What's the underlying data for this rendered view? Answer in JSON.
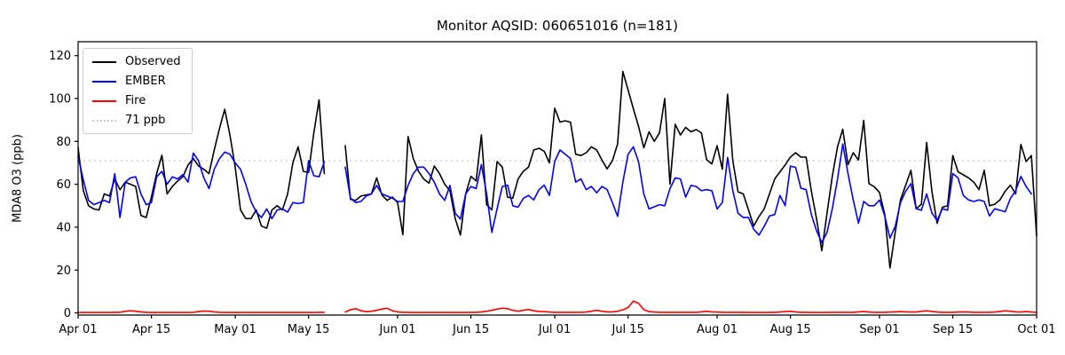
{
  "chart_data": {
    "type": "line",
    "title": "Monitor AQSID: 060651016 (n=181)",
    "xlabel": "",
    "ylabel": "MDA8 O3 (ppb)",
    "ylim": [
      -1,
      126.5
    ],
    "y_ticks": [
      0,
      20,
      40,
      60,
      80,
      100,
      120
    ],
    "x_ticks": [
      {
        "label": "Apr 01",
        "day": 0
      },
      {
        "label": "Apr 15",
        "day": 14
      },
      {
        "label": "May 01",
        "day": 30
      },
      {
        "label": "May 15",
        "day": 44
      },
      {
        "label": "Jun 01",
        "day": 61
      },
      {
        "label": "Jun 15",
        "day": 75
      },
      {
        "label": "Jul 01",
        "day": 91
      },
      {
        "label": "Jul 15",
        "day": 105
      },
      {
        "label": "Aug 01",
        "day": 122
      },
      {
        "label": "Aug 15",
        "day": 136
      },
      {
        "label": "Sep 01",
        "day": 153
      },
      {
        "label": "Sep 15",
        "day": 167
      },
      {
        "label": "Oct 01",
        "day": 183
      }
    ],
    "x_start_date": "Apr 01",
    "x_end_date": "Oct 01",
    "n_days": 184,
    "grid": false,
    "legend_position": "upper-left",
    "ref_line": {
      "label": "71 ppb",
      "value": 71,
      "color": "#c9c9c9",
      "style": "dotted"
    },
    "series": [
      {
        "name": "Observed",
        "color": "#000000",
        "style": "solid",
        "values": [
          77,
          57,
          50,
          48.5,
          48,
          55.5,
          54.5,
          62.5,
          57.5,
          61,
          60,
          59,
          45.5,
          44.5,
          54,
          65,
          73.5,
          55.5,
          59,
          61.5,
          63.5,
          69,
          72,
          68.5,
          67,
          65,
          76,
          86,
          95,
          83,
          68,
          48,
          44,
          44,
          48,
          40.5,
          39.5,
          48,
          50,
          48,
          55.5,
          70,
          77.5,
          66,
          65.5,
          84,
          99.4,
          65,
          null,
          null,
          null,
          78,
          53,
          52.5,
          54.5,
          55,
          55.5,
          63,
          55,
          52.5,
          54,
          51.5,
          36.5,
          82.3,
          72,
          66,
          62.4,
          60.5,
          68.5,
          65,
          60,
          57,
          44,
          36.3,
          55.5,
          63.7,
          61.6,
          83,
          50.5,
          48,
          70.6,
          68,
          54,
          53.5,
          62.4,
          66,
          68,
          76,
          76.8,
          75.4,
          70,
          95.5,
          89,
          89.6,
          89,
          74,
          73.4,
          74.7,
          77.5,
          76,
          71.3,
          67.2,
          71,
          78.8,
          112.6,
          104,
          95.3,
          87,
          77,
          84.5,
          80,
          84,
          100,
          60,
          88,
          83,
          86.5,
          84.5,
          85.5,
          84,
          71.5,
          69.5,
          78,
          67,
          102,
          71,
          56.5,
          55.5,
          48,
          40.5,
          45,
          48.5,
          55.5,
          62.5,
          65.8,
          69,
          72.7,
          74.7,
          72.7,
          72.7,
          56.8,
          43.8,
          29,
          46.6,
          63.7,
          77.5,
          85.7,
          69.2,
          74.7,
          71.3,
          89.8,
          60.3,
          58.9,
          56.2,
          45.9,
          21,
          37.6,
          52.7,
          59.6,
          66.5,
          48.6,
          50.7,
          79.5,
          56.8,
          41.8,
          49.3,
          50,
          73.4,
          65.8,
          64.4,
          63,
          61,
          57.5,
          66.5,
          50,
          50.7,
          52.7,
          56.8,
          59.6,
          55.5,
          78.6,
          70.6,
          73.4,
          36
        ]
      },
      {
        "name": "EMBER",
        "color": "#0000ff",
        "style": "solid",
        "values": [
          73,
          62,
          52.5,
          50.5,
          51.5,
          52.5,
          51.5,
          65,
          44.5,
          61,
          63,
          63.5,
          55.5,
          50.5,
          51.5,
          63.5,
          66,
          60,
          63.5,
          62.5,
          64.5,
          61,
          74.5,
          71,
          63,
          58,
          67,
          72,
          75,
          74,
          70,
          67,
          60,
          52,
          47,
          44.5,
          48.5,
          44,
          48,
          48.5,
          47,
          51.5,
          51,
          51.5,
          71,
          64,
          63.5,
          70.5,
          null,
          null,
          null,
          68,
          53.5,
          51.5,
          52,
          54.5,
          55.5,
          59.5,
          55.5,
          54.5,
          53.5,
          52,
          52,
          59.5,
          65,
          68,
          68,
          65,
          61,
          55.5,
          52.5,
          59.5,
          46.5,
          43.8,
          55.5,
          59,
          58,
          69.2,
          55.5,
          37.6,
          48.6,
          59,
          59.6,
          50,
          49.3,
          53.4,
          54.8,
          52.7,
          57.5,
          59.6,
          54.8,
          70.6,
          76,
          74,
          72,
          61,
          62.5,
          57.5,
          59,
          56,
          59,
          57.5,
          51.5,
          45,
          61,
          74,
          77.5,
          70.5,
          55.5,
          48.5,
          49.5,
          50.5,
          50,
          58,
          63,
          62.5,
          54,
          59.5,
          59,
          57,
          57.5,
          57,
          48.5,
          51.5,
          72.5,
          57,
          46.5,
          44.5,
          44.5,
          39,
          36.3,
          40.4,
          45.2,
          45.9,
          54.8,
          50,
          68.5,
          67.9,
          58.2,
          57.5,
          45.9,
          38.3,
          32.8,
          37.6,
          48.6,
          62.4,
          78.8,
          65,
          52.7,
          41.8,
          52,
          50,
          50,
          52.7,
          45.2,
          34.9,
          40.4,
          51.4,
          56.8,
          60.3,
          48.6,
          47.9,
          55.5,
          46.6,
          43.1,
          48.6,
          47.9,
          65,
          63,
          54.8,
          52.7,
          52,
          52.7,
          52,
          45.2,
          48.6,
          47.9,
          47.2,
          53.4,
          57,
          63.7,
          59,
          55.5,
          null
        ]
      },
      {
        "name": "Fire",
        "color": "#ff0000",
        "style": "solid",
        "values": [
          0.2,
          0.2,
          0.2,
          0.2,
          0.2,
          0.2,
          0.2,
          0.3,
          0.3,
          0.8,
          1.0,
          0.8,
          0.5,
          0.3,
          0.2,
          0.2,
          0.2,
          0.2,
          0.2,
          0.2,
          0.2,
          0.2,
          0.3,
          0.6,
          0.9,
          0.8,
          0.5,
          0.3,
          0.2,
          0.2,
          0.2,
          0.2,
          0.2,
          0.2,
          0.2,
          0.2,
          0.2,
          0.2,
          0.2,
          0.2,
          0.2,
          0.2,
          0.2,
          0.2,
          0.2,
          0.2,
          0.3,
          0.3,
          null,
          null,
          null,
          0.4,
          1.5,
          2.0,
          1.0,
          0.6,
          0.8,
          1.2,
          1.8,
          2.2,
          1.0,
          0.5,
          0.3,
          0.3,
          0.2,
          0.2,
          0.2,
          0.2,
          0.2,
          0.2,
          0.2,
          0.2,
          0.2,
          0.2,
          0.2,
          0.3,
          0.3,
          0.5,
          0.8,
          1.2,
          1.8,
          2.2,
          2.0,
          1.2,
          0.8,
          1.2,
          1.6,
          1.0,
          0.7,
          0.6,
          0.4,
          0.3,
          0.3,
          0.3,
          0.3,
          0.3,
          0.3,
          0.4,
          0.8,
          1.2,
          0.8,
          0.5,
          0.5,
          0.8,
          1.5,
          2.5,
          5.5,
          4.5,
          1.5,
          0.6,
          0.4,
          0.3,
          0.3,
          0.3,
          0.3,
          0.3,
          0.3,
          0.3,
          0.3,
          0.5,
          0.8,
          0.5,
          0.4,
          0.3,
          0.3,
          0.3,
          0.3,
          0.3,
          0.2,
          0.2,
          0.2,
          0.2,
          0.2,
          0.3,
          0.4,
          0.6,
          0.8,
          0.5,
          0.3,
          0.3,
          0.2,
          0.2,
          0.2,
          0.2,
          0.3,
          0.3,
          0.3,
          0.3,
          0.3,
          0.5,
          0.7,
          0.4,
          0.3,
          0.3,
          0.3,
          0.4,
          0.5,
          0.6,
          0.5,
          0.4,
          0.4,
          0.8,
          1.0,
          0.7,
          0.4,
          0.3,
          0.3,
          0.3,
          0.4,
          0.5,
          0.4,
          0.3,
          0.3,
          0.3,
          0.3,
          0.4,
          0.7,
          1.0,
          0.8,
          0.5,
          0.4,
          0.6,
          0.4,
          0.3
        ]
      }
    ]
  }
}
